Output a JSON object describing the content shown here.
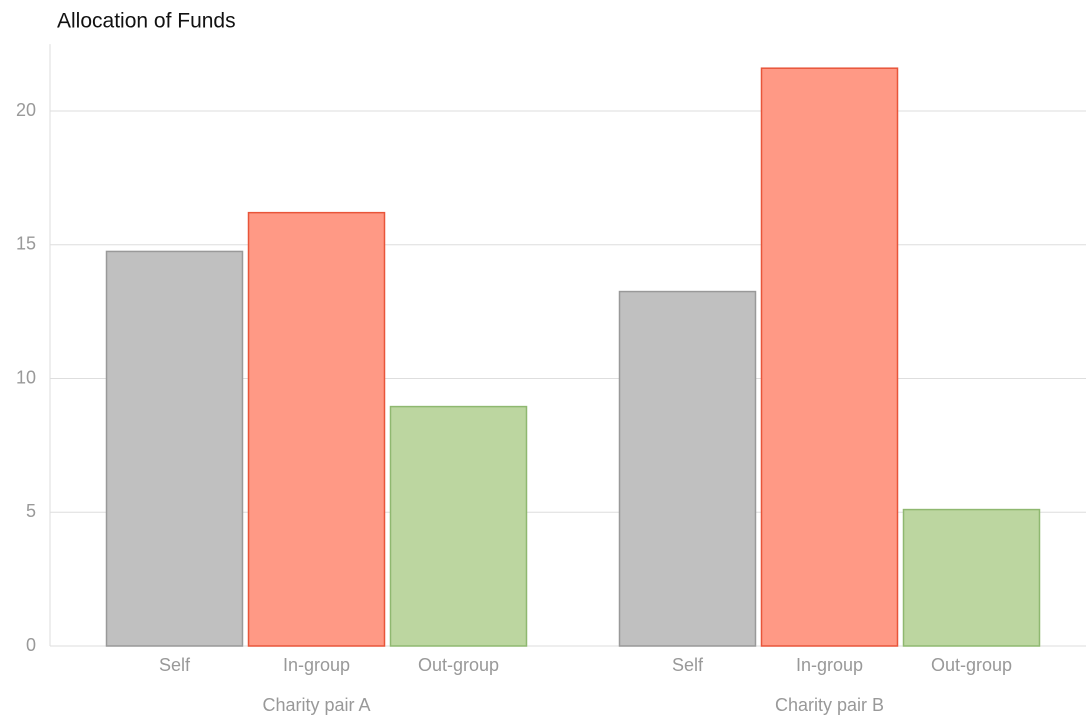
{
  "chart_data": {
    "type": "grouped_bar",
    "title": "Allocation of Funds",
    "categories": [
      "Charity pair A",
      "Charity pair B"
    ],
    "series": [
      {
        "name": "Self",
        "color": "#c0c0c0",
        "values": [
          14.75,
          13.25
        ]
      },
      {
        "name": "In-group",
        "color": "#ff9985",
        "values": [
          16.2,
          21.6
        ]
      },
      {
        "name": "Out-group",
        "color": "#bcd6a0",
        "values": [
          8.95,
          5.1
        ]
      }
    ],
    "ylim": [
      0,
      22.5
    ],
    "yticks": [
      0,
      5,
      10,
      15,
      20
    ],
    "grid": true
  }
}
